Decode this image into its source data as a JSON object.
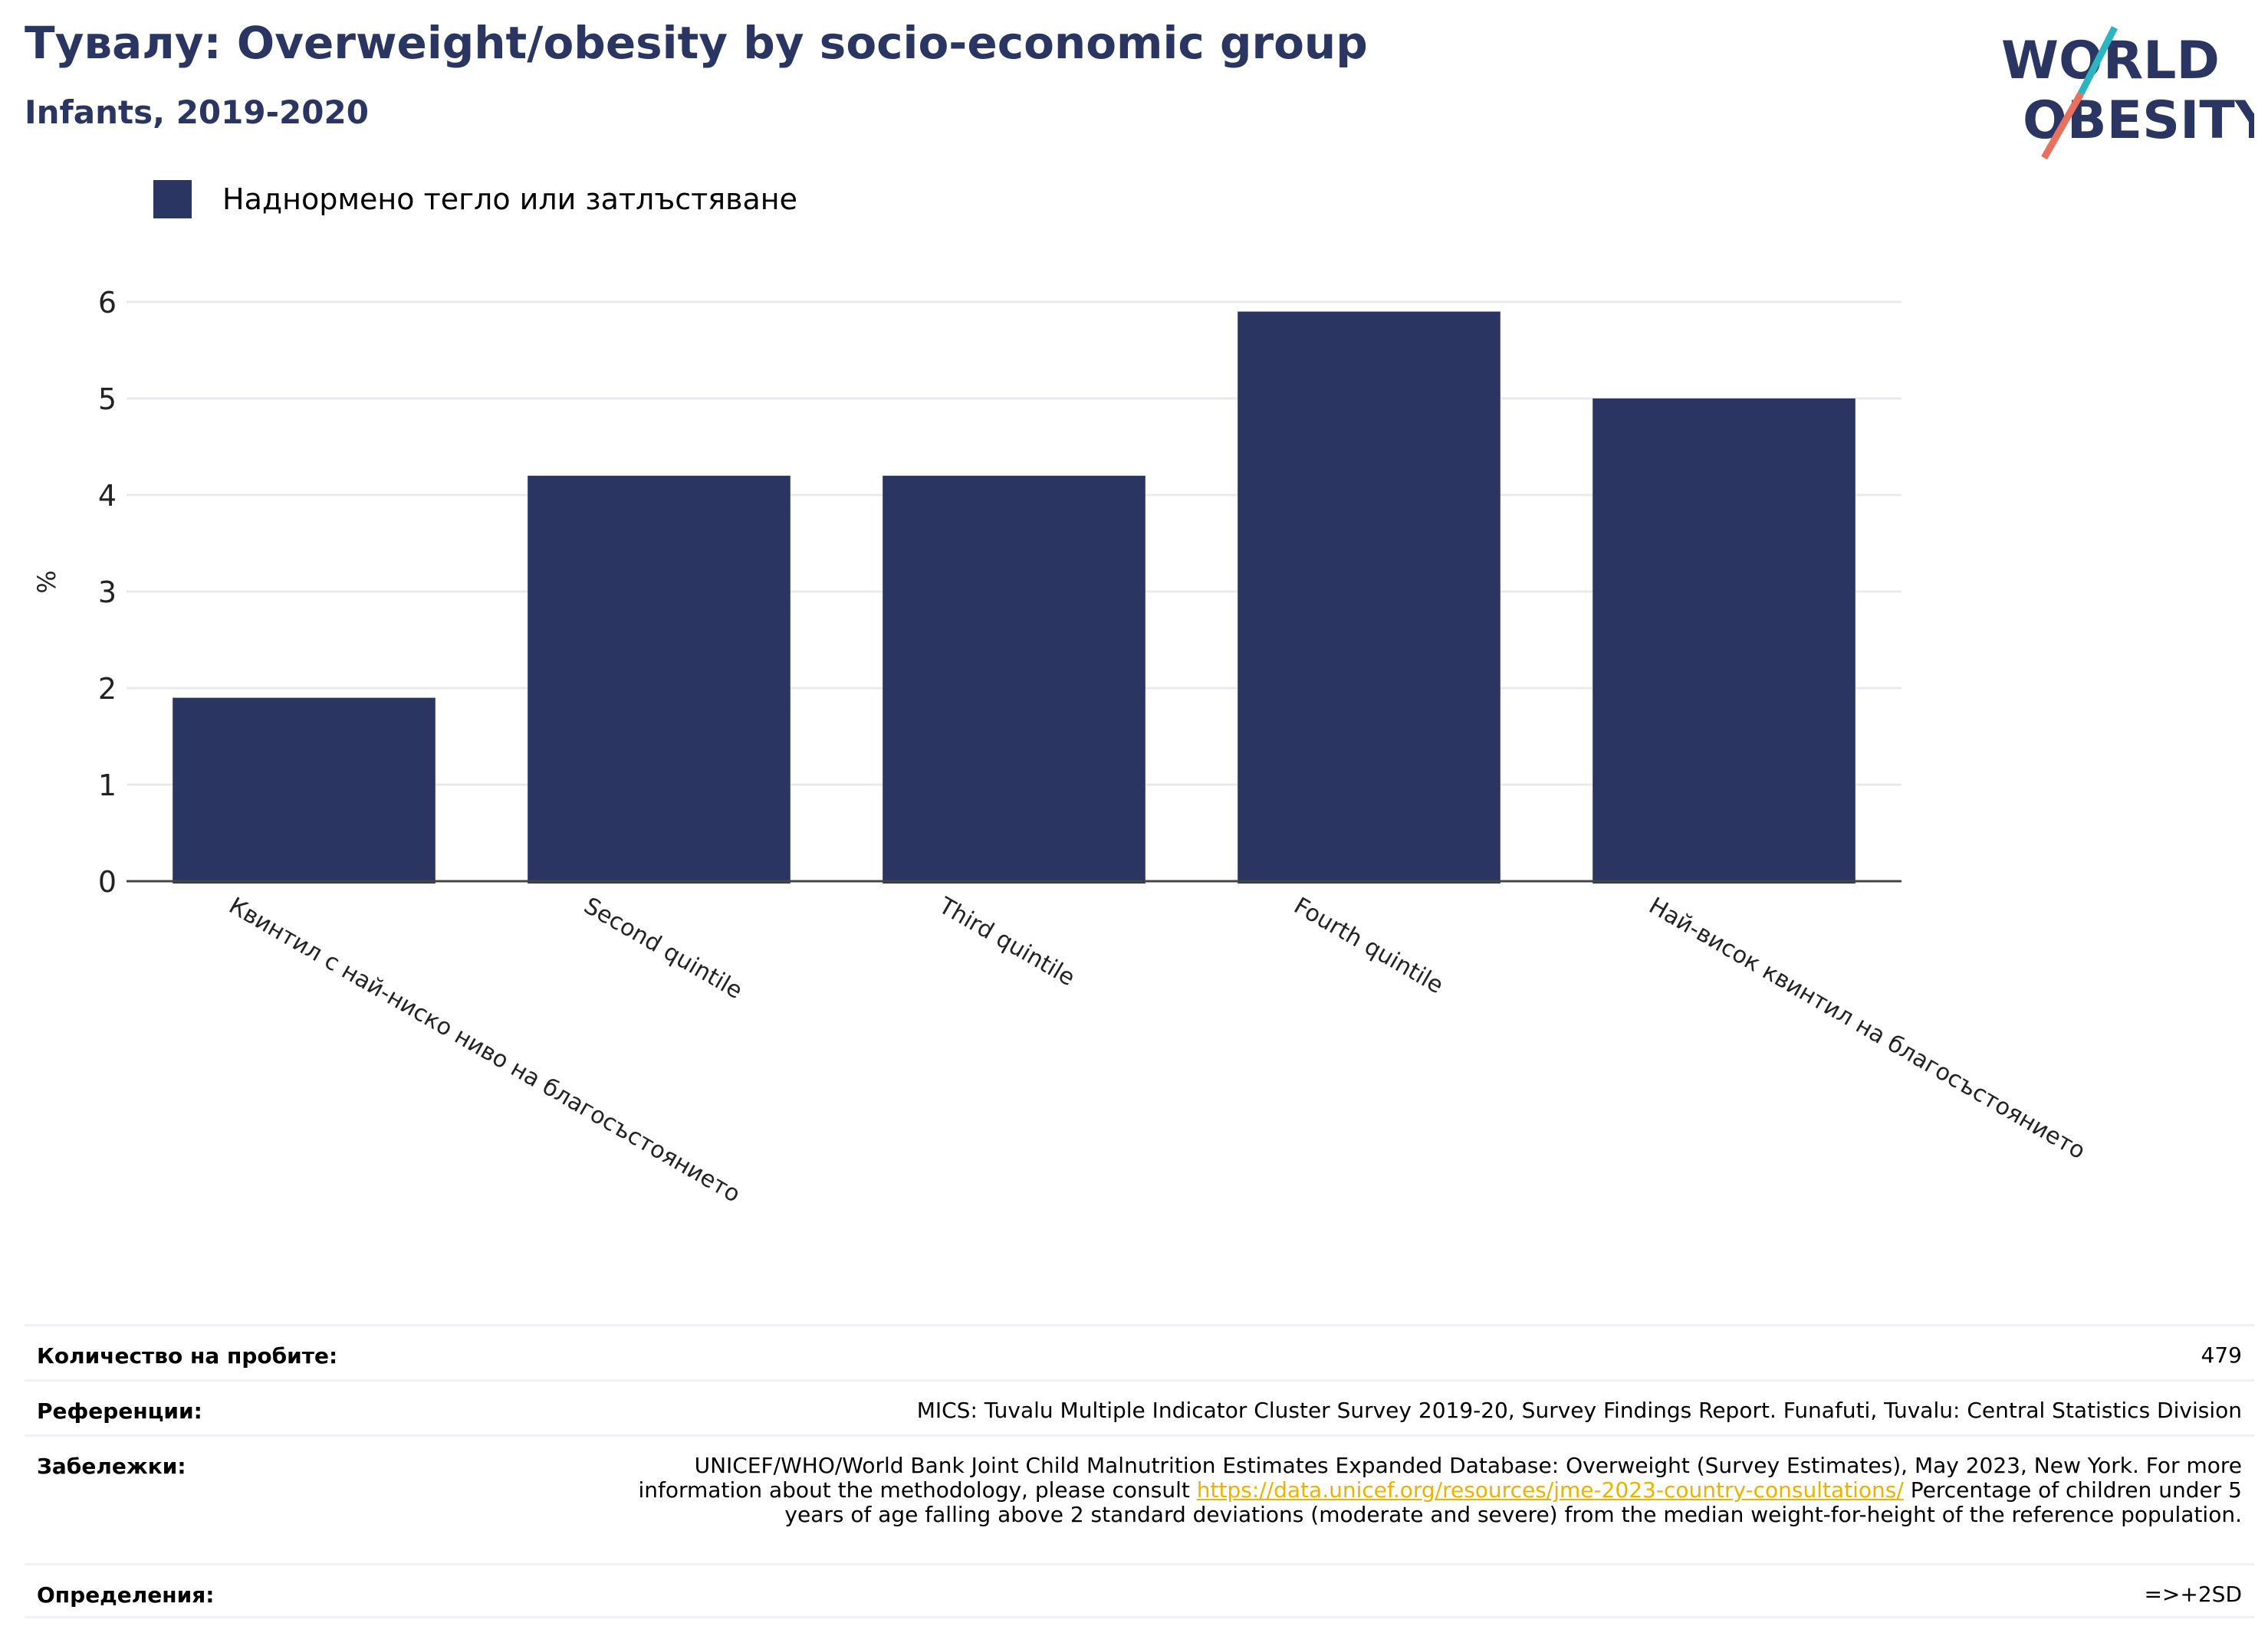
{
  "header": {
    "title": "Тувалу: Overweight/obesity by socio-economic group",
    "subtitle": "Infants, 2019-2020"
  },
  "logo": {
    "line1": "WORLD",
    "line2": "OBESITY",
    "text_color": "#2a3661",
    "slash_teal": "#2bb5c0",
    "slash_coral": "#e8705f"
  },
  "chart_data": {
    "type": "bar",
    "title": "Тувалу: Overweight/obesity by socio-economic group",
    "subtitle": "Infants, 2019-2020",
    "categories": [
      "Квинтил с най-ниско ниво на благосъстоянието",
      "Second quintile",
      "Third quintile",
      "Fourth quintile",
      "Най-висок квинтил на благосъстоянието"
    ],
    "series": [
      {
        "name": "Наднормено тегло или затлъстяване",
        "values": [
          1.9,
          4.2,
          4.2,
          5.9,
          5.0
        ],
        "color": "#2a3661"
      }
    ],
    "ylabel": "%",
    "xlabel": "",
    "ylim": [
      0,
      6.5
    ],
    "yticks": [
      0,
      1,
      2,
      3,
      4,
      5,
      6
    ],
    "grid": true,
    "legend_position": "top-left"
  },
  "notes": {
    "sample_size": {
      "label": "Количество на пробите:",
      "value": "479"
    },
    "references": {
      "label": "Референции:",
      "value": "MICS: Tuvalu Multiple Indicator Cluster Survey 2019-20, Survey Findings Report. Funafuti, Tuvalu: Central Statistics Division"
    },
    "remarks": {
      "label": "Забележки:",
      "text_before": "UNICEF/WHO/World Bank Joint Child Malnutrition Estimates Expanded Database: Overweight (Survey Estimates), May 2023, New York. For more information about the methodology, please consult ",
      "link": "https://data.unicef.org/resources/jme-2023-country-consultations/",
      "text_after": " Percentage of children under 5 years of age falling above 2 standard deviations (moderate and severe) from the median weight-for-height of the reference population."
    },
    "definitions": {
      "label": "Определения:",
      "value": "=>+2SD"
    }
  }
}
